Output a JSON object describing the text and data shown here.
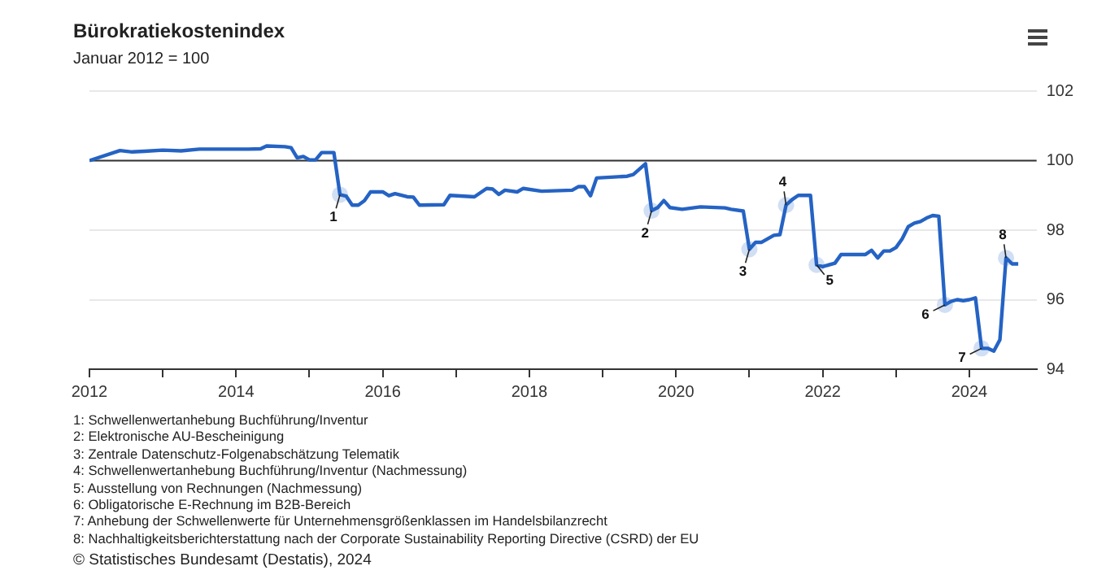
{
  "chart_data": {
    "type": "line",
    "title": "Bürokratiekostenindex",
    "subtitle": "Januar 2012 = 100",
    "x": [
      "2012-01",
      "2012-06",
      "2012-08",
      "2012-10",
      "2013-01",
      "2013-04",
      "2013-07",
      "2014-03",
      "2014-05",
      "2014-06",
      "2014-09",
      "2014-10",
      "2014-11",
      "2014-12",
      "2015-01",
      "2015-02",
      "2015-03",
      "2015-05",
      "2015-06",
      "2015-07",
      "2015-08",
      "2015-09",
      "2015-10",
      "2015-11",
      "2016-01",
      "2016-02",
      "2016-03",
      "2016-05",
      "2016-06",
      "2016-07",
      "2016-11",
      "2016-12",
      "2017-04",
      "2017-06",
      "2017-07",
      "2017-08",
      "2017-09",
      "2017-11",
      "2017-12",
      "2018-03",
      "2018-08",
      "2018-09",
      "2018-10",
      "2018-11",
      "2018-12",
      "2019-05",
      "2019-06",
      "2019-08",
      "2019-09",
      "2019-10",
      "2019-11",
      "2019-12",
      "2020-02",
      "2020-05",
      "2020-09",
      "2020-10",
      "2020-12",
      "2021-01",
      "2021-02",
      "2021-03",
      "2021-05",
      "2021-06",
      "2021-07",
      "2021-08",
      "2021-09",
      "2021-11",
      "2021-12",
      "2022-01",
      "2022-03",
      "2022-04",
      "2022-08",
      "2022-09",
      "2022-10",
      "2022-11",
      "2022-12",
      "2023-01",
      "2023-02",
      "2023-03",
      "2023-04",
      "2023-05",
      "2023-06",
      "2023-07",
      "2023-08",
      "2023-09",
      "2023-10",
      "2023-11",
      "2023-12",
      "2024-01",
      "2024-02",
      "2024-03",
      "2024-04",
      "2024-05",
      "2024-06",
      "2024-07",
      "2024-08",
      "2024-09"
    ],
    "series": [
      {
        "color": "#2563c4",
        "values": [
          100.0,
          100.29,
          100.25,
          100.27,
          100.3,
          100.28,
          100.33,
          100.33,
          100.34,
          100.42,
          100.4,
          100.37,
          100.08,
          100.12,
          100.02,
          100.02,
          100.23,
          100.23,
          99.02,
          98.98,
          98.72,
          98.72,
          98.85,
          99.1,
          99.1,
          98.99,
          99.05,
          98.96,
          98.95,
          98.72,
          98.73,
          99.0,
          98.96,
          99.2,
          99.18,
          99.03,
          99.15,
          99.1,
          99.2,
          99.12,
          99.15,
          99.25,
          99.25,
          98.99,
          99.5,
          99.55,
          99.6,
          99.91,
          98.56,
          98.65,
          98.85,
          98.65,
          98.6,
          98.67,
          98.64,
          98.6,
          98.55,
          97.45,
          97.65,
          97.65,
          97.85,
          97.87,
          98.72,
          98.88,
          99.0,
          99.0,
          97.0,
          96.95,
          97.05,
          97.3,
          97.3,
          97.42,
          97.2,
          97.4,
          97.4,
          97.5,
          97.75,
          98.1,
          98.2,
          98.25,
          98.35,
          98.42,
          98.4,
          95.85,
          95.95,
          96.0,
          95.97,
          96.0,
          96.05,
          94.6,
          94.6,
          94.52,
          94.85,
          97.2,
          97.03,
          97.03
        ]
      }
    ],
    "xlim": [
      "2012-01",
      "2024-12"
    ],
    "xticks": [
      {
        "value": "2012",
        "label": "2012"
      },
      {
        "value": "2013",
        "label": null
      },
      {
        "value": "2014",
        "label": "2014"
      },
      {
        "value": "2015",
        "label": null
      },
      {
        "value": "2016",
        "label": "2016"
      },
      {
        "value": "2017",
        "label": null
      },
      {
        "value": "2018",
        "label": "2018"
      },
      {
        "value": "2019",
        "label": null
      },
      {
        "value": "2020",
        "label": "2020"
      },
      {
        "value": "2021",
        "label": null
      },
      {
        "value": "2022",
        "label": "2022"
      },
      {
        "value": "2023",
        "label": null
      },
      {
        "value": "2024",
        "label": "2024"
      }
    ],
    "ylim": [
      94,
      102
    ],
    "yticks": [
      94,
      96,
      98,
      100,
      102
    ],
    "grid": "y",
    "marker": "none",
    "line_style": "solid",
    "ref_lines": [
      {
        "axis": "y",
        "value": 100,
        "color": "#333333"
      }
    ],
    "annotations": [
      {
        "text": "1",
        "x": "2015-06",
        "y": 99.02
      },
      {
        "text": "2",
        "x": "2019-09",
        "y": 98.56
      },
      {
        "text": "3",
        "x": "2021-01",
        "y": 97.45
      },
      {
        "text": "4",
        "x": "2021-07",
        "y": 98.72
      },
      {
        "text": "5",
        "x": "2021-12",
        "y": 97.0
      },
      {
        "text": "6",
        "x": "2023-09",
        "y": 95.85
      },
      {
        "text": "7",
        "x": "2024-03",
        "y": 94.6
      },
      {
        "text": "8",
        "x": "2024-07",
        "y": 97.2
      },
      "1: Schwellenwertanhebung Buchführung/Inventur",
      "2: Elektronische AU-Bescheinigung",
      "3: Zentrale Datenschutz-Folgenabschätzung Telematik",
      "4: Schwellenwertanhebung Buchführung/Inventur (Nachmessung)",
      "5: Ausstellung von Rechnungen (Nachmessung)",
      "6: Obligatorische E-Rechnung im B2B-Bereich",
      "7: Anhebung der Schwellenwerte für Unternehmensgrößenklassen im Handelsbilanzrecht",
      "8: Nachhaltigkeitsberichterstattung nach der Corporate Sustainability Reporting Directive (CSRD) der EU",
      "© Statistisches Bundesamt (Destatis), 2024"
    ]
  }
}
